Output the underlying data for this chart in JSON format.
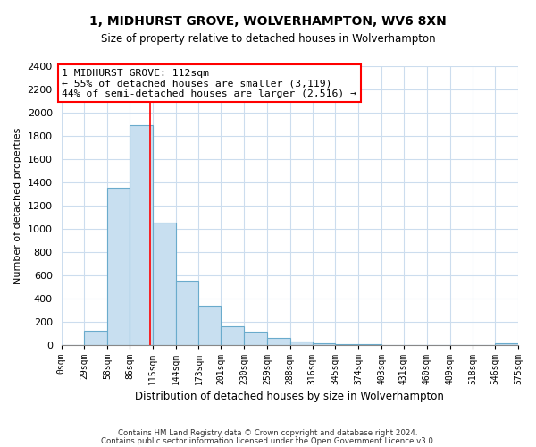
{
  "title": "1, MIDHURST GROVE, WOLVERHAMPTON, WV6 8XN",
  "subtitle": "Size of property relative to detached houses in Wolverhampton",
  "xlabel": "Distribution of detached houses by size in Wolverhampton",
  "ylabel": "Number of detached properties",
  "bar_color": "#c8dff0",
  "bar_edge_color": "#6aabcc",
  "bin_edges": [
    0,
    29,
    58,
    86,
    115,
    144,
    173,
    201,
    230,
    259,
    288,
    316,
    345,
    374,
    403,
    431,
    460,
    489,
    518,
    546,
    575
  ],
  "bin_labels": [
    "0sqm",
    "29sqm",
    "58sqm",
    "86sqm",
    "115sqm",
    "144sqm",
    "173sqm",
    "201sqm",
    "230sqm",
    "259sqm",
    "288sqm",
    "316sqm",
    "345sqm",
    "374sqm",
    "403sqm",
    "431sqm",
    "460sqm",
    "489sqm",
    "518sqm",
    "546sqm",
    "575sqm"
  ],
  "bar_heights": [
    0,
    125,
    1350,
    1890,
    1050,
    550,
    335,
    160,
    110,
    60,
    30,
    15,
    8,
    3,
    2,
    1,
    0,
    0,
    0,
    10
  ],
  "ylim": [
    0,
    2400
  ],
  "yticks": [
    0,
    200,
    400,
    600,
    800,
    1000,
    1200,
    1400,
    1600,
    1800,
    2000,
    2200,
    2400
  ],
  "property_line_x": 112,
  "ann_line1": "1 MIDHURST GROVE: 112sqm",
  "ann_line2": "← 55% of detached houses are smaller (3,119)",
  "ann_line3": "44% of semi-detached houses are larger (2,516) →",
  "footnote1": "Contains HM Land Registry data © Crown copyright and database right 2024.",
  "footnote2": "Contains public sector information licensed under the Open Government Licence v3.0.",
  "background_color": "#ffffff",
  "grid_color": "#ccddee"
}
